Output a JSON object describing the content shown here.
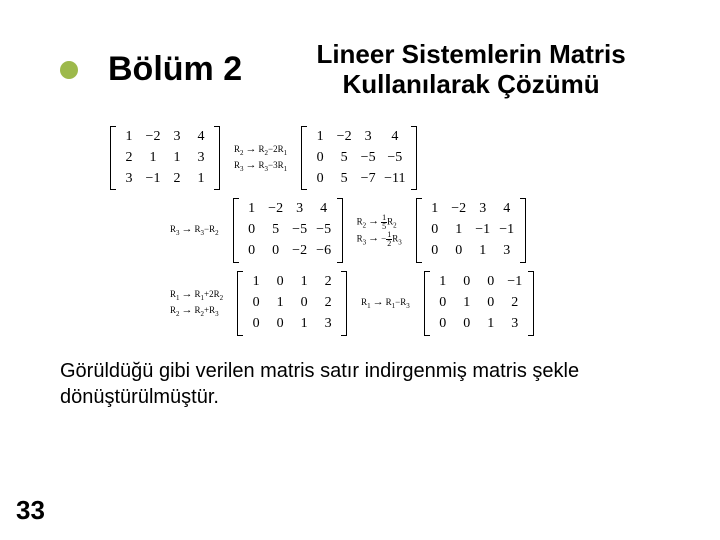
{
  "bullet_color": "#9db94b",
  "section_title": "Bölüm 2",
  "page_header": "Lineer Sistemlerin Matris Kullanılarak Çözümü",
  "footer_text": "Görüldüğü gibi verilen matris satır indirgenmiş matris şekle dönüştürülmüştür.",
  "page_number": "33",
  "rows": [
    {
      "indent": 0,
      "items": [
        {
          "type": "matrix",
          "cols": 4,
          "cells": [
            "1",
            "−2",
            "3",
            "4",
            "2",
            "1",
            "1",
            "3",
            "3",
            "−1",
            "2",
            "1"
          ]
        },
        {
          "type": "ops",
          "lines": [
            "R<sub>2</sub><span class='arrow'>→</span>R<sub>2</sub>−2R<sub>1</sub>",
            "R<sub>3</sub><span class='arrow'>→</span>R<sub>3</sub>−3R<sub>1</sub>"
          ]
        },
        {
          "type": "matrix",
          "cols": 4,
          "cells": [
            "1",
            "−2",
            "3",
            "4",
            "0",
            "5",
            "−5",
            "−5",
            "0",
            "5",
            "−7",
            "−11"
          ]
        }
      ]
    },
    {
      "indent": 60,
      "items": [
        {
          "type": "ops",
          "lines": [
            "R<sub>3</sub><span class='arrow'>→</span>R<sub>3</sub>−R<sub>2</sub>"
          ]
        },
        {
          "type": "matrix",
          "cols": 4,
          "cells": [
            "1",
            "−2",
            "3",
            "4",
            "0",
            "5",
            "−5",
            "−5",
            "0",
            "0",
            "−2",
            "−6"
          ]
        },
        {
          "type": "ops",
          "lines": [
            "R<sub>2</sub><span class='arrow'>→</span><span class='frac'><span class='n'>1</span><span class='d'>5</span></span>R<sub>2</sub>",
            "R<sub>3</sub><span class='arrow'>→</span>−<span class='frac'><span class='n'>1</span><span class='d'>2</span></span>R<sub>3</sub>"
          ]
        },
        {
          "type": "matrix",
          "cols": 4,
          "cells": [
            "1",
            "−2",
            "3",
            "4",
            "0",
            "1",
            "−1",
            "−1",
            "0",
            "0",
            "1",
            "3"
          ]
        }
      ]
    },
    {
      "indent": 60,
      "items": [
        {
          "type": "ops",
          "lines": [
            "R<sub>1</sub><span class='arrow'>→</span>R<sub>1</sub>+2R<sub>2</sub>",
            "R<sub>2</sub><span class='arrow'>→</span>R<sub>2</sub>+R<sub>3</sub>"
          ]
        },
        {
          "type": "matrix",
          "cols": 4,
          "cells": [
            "1",
            "0",
            "1",
            "2",
            "0",
            "1",
            "0",
            "2",
            "0",
            "0",
            "1",
            "3"
          ]
        },
        {
          "type": "ops",
          "lines": [
            "R<sub>1</sub><span class='arrow'>→</span>R<sub>1</sub>−R<sub>3</sub>"
          ]
        },
        {
          "type": "matrix",
          "cols": 4,
          "cells": [
            "1",
            "0",
            "0",
            "−1",
            "0",
            "1",
            "0",
            "2",
            "0",
            "0",
            "1",
            "3"
          ]
        }
      ]
    }
  ]
}
